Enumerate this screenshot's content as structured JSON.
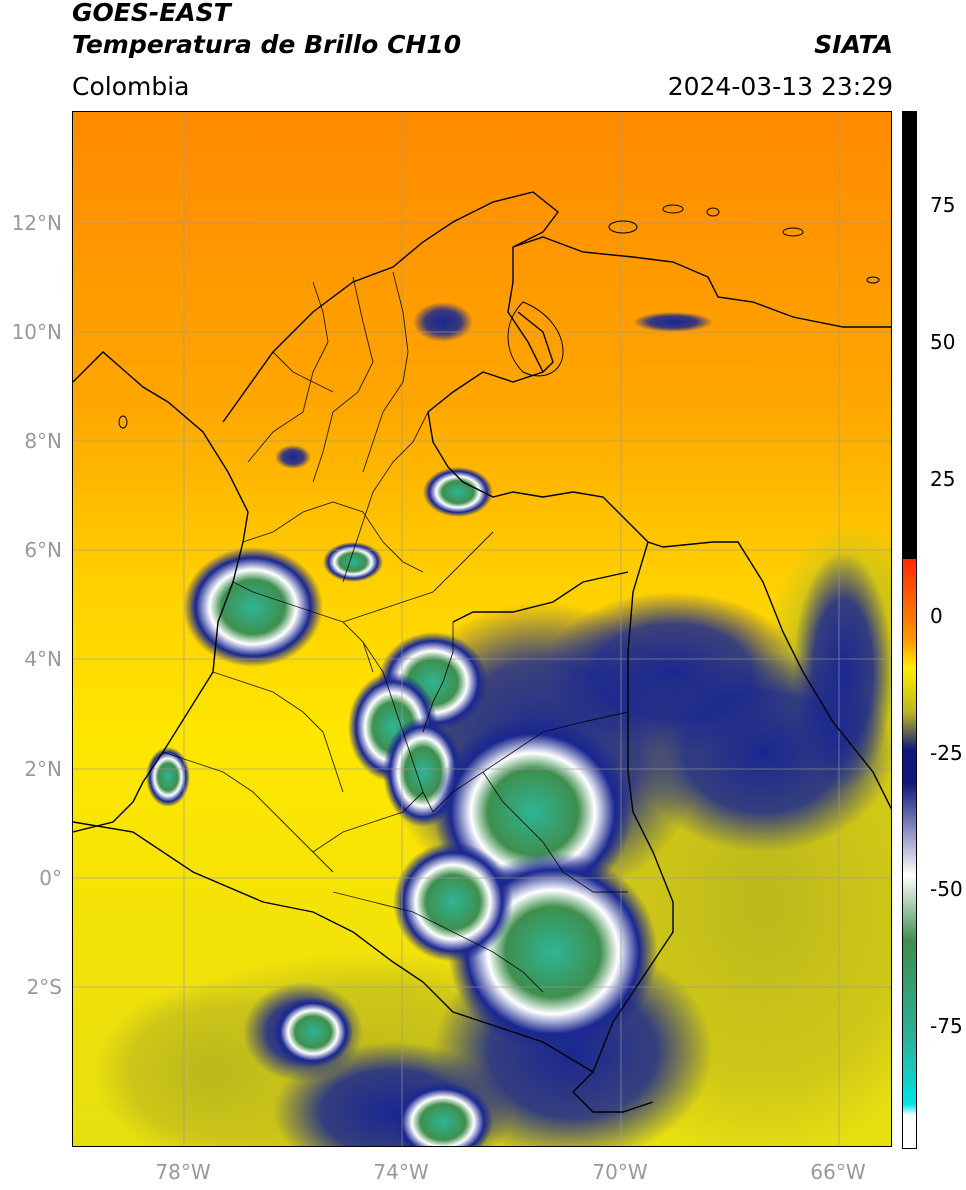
{
  "header": {
    "satellite": "GOES-EAST",
    "product": "Temperatura de Brillo CH10",
    "region": "Colombia",
    "organization": "SIATA",
    "timestamp": "2024-03-13 23:29"
  },
  "map": {
    "lon_range": [
      -80,
      -65
    ],
    "lat_range": [
      -5,
      14
    ],
    "latitude_labels": [
      "12°N",
      "10°N",
      "8°N",
      "6°N",
      "4°N",
      "2°N",
      "0°",
      "2°S"
    ],
    "longitude_labels": [
      "78°W",
      "74°W",
      "70°W",
      "66°W"
    ],
    "gridlines": true
  },
  "colorbar": {
    "tick_labels": [
      "75",
      "50",
      "25",
      "0",
      "-25",
      "-50",
      "-75"
    ],
    "range": [
      -100,
      90
    ],
    "colors": {
      "warm_top": "#000000",
      "zero": "#ff2a00",
      "orange": "#ff9a00",
      "yellow": "#ffee00",
      "olive": "#bdb81e",
      "navy": "#101880",
      "white": "#ffffff",
      "green": "#3e8f4e",
      "teal": "#2ab39a",
      "cyan": "#00e5e5"
    }
  }
}
